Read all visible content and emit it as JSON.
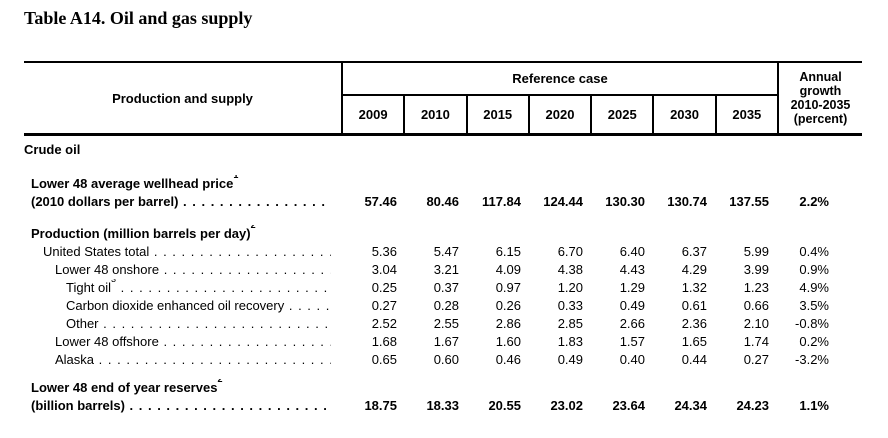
{
  "title": "Table A14. Oil and gas supply",
  "table": {
    "stub_header": "Production and supply",
    "group_header": "Reference case",
    "year_columns": [
      "2009",
      "2010",
      "2015",
      "2020",
      "2025",
      "2030",
      "2035"
    ],
    "growth_header_lines": [
      "Annual",
      "growth",
      "2010-2035",
      "(percent)"
    ],
    "rows": [
      {
        "label": "Crude oil",
        "bold": true,
        "indent": 0,
        "gap": 0
      },
      {
        "label": "Lower 48 average wellhead price",
        "sup": "1",
        "bold": true,
        "indent": 1,
        "gap": 16
      },
      {
        "label": "(2010 dollars per barrel)",
        "bold": true,
        "indent": 1,
        "dots": true,
        "values": [
          "57.46",
          "80.46",
          "117.84",
          "124.44",
          "130.30",
          "130.74",
          "137.55"
        ],
        "growth": "2.2%"
      },
      {
        "label": "Production (million barrels per day)",
        "sup": "2",
        "bold": true,
        "indent": 1,
        "gap": 14
      },
      {
        "label": "United States total",
        "bold": false,
        "indent": 2,
        "dots": true,
        "values": [
          "5.36",
          "5.47",
          "6.15",
          "6.70",
          "6.40",
          "6.37",
          "5.99"
        ],
        "growth": "0.4%"
      },
      {
        "label": "Lower 48 onshore",
        "bold": false,
        "indent": 3,
        "dots": true,
        "values": [
          "3.04",
          "3.21",
          "4.09",
          "4.38",
          "4.43",
          "4.29",
          "3.99"
        ],
        "growth": "0.9%"
      },
      {
        "label": "Tight oil",
        "sup": "3",
        "bold": false,
        "indent": 4,
        "dots": true,
        "values": [
          "0.25",
          "0.37",
          "0.97",
          "1.20",
          "1.29",
          "1.32",
          "1.23"
        ],
        "growth": "4.9%"
      },
      {
        "label": "Carbon dioxide enhanced oil recovery",
        "bold": false,
        "indent": 4,
        "dots": true,
        "values": [
          "0.27",
          "0.28",
          "0.26",
          "0.33",
          "0.49",
          "0.61",
          "0.66"
        ],
        "growth": "3.5%"
      },
      {
        "label": "Other",
        "bold": false,
        "indent": 4,
        "dots": true,
        "values": [
          "2.52",
          "2.55",
          "2.86",
          "2.85",
          "2.66",
          "2.36",
          "2.10"
        ],
        "growth": "-0.8%"
      },
      {
        "label": "Lower 48 offshore",
        "bold": false,
        "indent": 3,
        "dots": true,
        "values": [
          "1.68",
          "1.67",
          "1.60",
          "1.83",
          "1.57",
          "1.65",
          "1.74"
        ],
        "growth": "0.2%"
      },
      {
        "label": "Alaska",
        "bold": false,
        "indent": 3,
        "dots": true,
        "values": [
          "0.65",
          "0.60",
          "0.46",
          "0.49",
          "0.40",
          "0.44",
          "0.27"
        ],
        "growth": "-3.2%"
      },
      {
        "label": "Lower 48 end of year reserves",
        "sup": "2",
        "bold": true,
        "indent": 1,
        "gap": 10
      },
      {
        "label": "(billion barrels)",
        "bold": true,
        "indent": 1,
        "dots": true,
        "values": [
          "18.75",
          "18.33",
          "20.55",
          "23.02",
          "23.64",
          "24.34",
          "24.23"
        ],
        "growth": "1.1%"
      }
    ]
  }
}
